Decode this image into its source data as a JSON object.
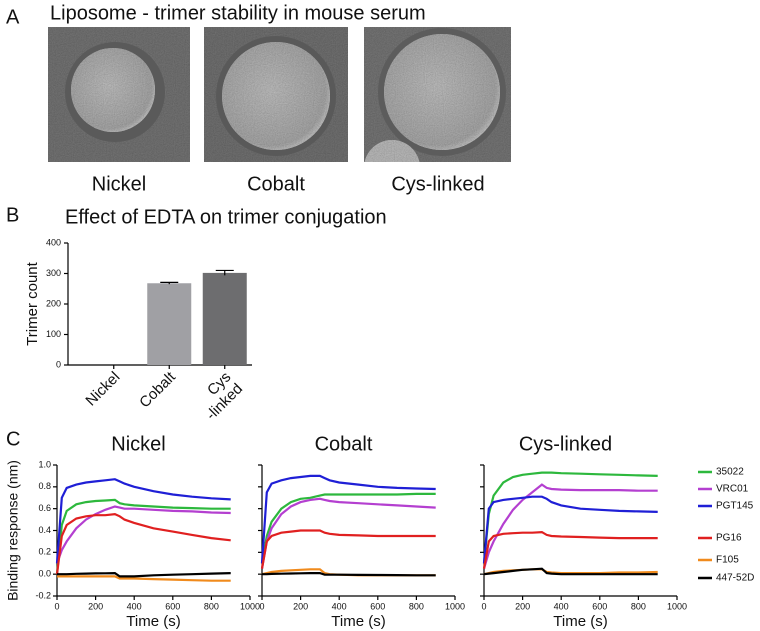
{
  "panel_a": {
    "label": "A",
    "title": "Liposome - trimer stability in mouse serum",
    "images": [
      {
        "label": "Nickel"
      },
      {
        "label": "Cobalt"
      },
      {
        "label": "Cys-linked"
      }
    ]
  },
  "panel_b_label": "B",
  "panel_c_label": "C",
  "chart_data": [
    {
      "type": "bar",
      "title": "Effect of EDTA on trimer conjugation",
      "y_label": "Trimer count",
      "categories": [
        "Nickel",
        "Cobalt",
        "Cys\n-linked"
      ],
      "values": [
        0,
        268,
        302
      ],
      "errors": [
        null,
        3,
        8
      ],
      "colors": [
        "#a0a0a4",
        "#a0a0a4",
        "#6d6d6f"
      ],
      "ylim": [
        0,
        400
      ],
      "yticks": [
        0,
        100,
        200,
        300,
        400
      ]
    },
    {
      "type": "line",
      "title": "Nickel",
      "x_label": "Time (s)",
      "y_label": "Binding response  (nm)",
      "x": [
        0,
        25,
        50,
        100,
        150,
        200,
        250,
        300,
        325,
        350,
        400,
        500,
        600,
        700,
        800,
        900
      ],
      "xlim": [
        0,
        1000
      ],
      "xticks": [
        0,
        200,
        400,
        600,
        800,
        1000
      ],
      "ylim": [
        -0.2,
        1.0
      ],
      "yticks": [
        -0.2,
        {
          "value": 0,
          "label": "0.0"
        },
        0.2,
        0.4,
        0.6,
        0.8,
        {
          "value": 1,
          "label": "1.0"
        }
      ],
      "show_ytick_labels": true,
      "series": [
        {
          "color": "#2db83d",
          "values": [
            0,
            0.45,
            0.58,
            0.64,
            0.66,
            0.67,
            0.675,
            0.68,
            0.65,
            0.64,
            0.63,
            0.62,
            0.61,
            0.605,
            0.6,
            0.6
          ]
        },
        {
          "color": "#b43fd0",
          "values": [
            0.1,
            0.22,
            0.3,
            0.42,
            0.5,
            0.55,
            0.59,
            0.62,
            0.61,
            0.6,
            0.6,
            0.59,
            0.58,
            0.575,
            0.565,
            0.56
          ]
        },
        {
          "color": "#1f1fd6",
          "values": [
            0.1,
            0.7,
            0.79,
            0.82,
            0.84,
            0.85,
            0.86,
            0.87,
            0.85,
            0.83,
            0.8,
            0.76,
            0.73,
            0.71,
            0.695,
            0.685
          ]
        },
        {
          "color": "#e02020",
          "values": [
            0,
            0.35,
            0.45,
            0.51,
            0.53,
            0.54,
            0.54,
            0.55,
            0.53,
            0.5,
            0.47,
            0.42,
            0.39,
            0.36,
            0.33,
            0.31
          ]
        },
        {
          "color": "#f08a1c",
          "values": [
            -0.02,
            -0.02,
            -0.02,
            -0.02,
            -0.02,
            -0.02,
            -0.02,
            -0.02,
            -0.04,
            -0.04,
            -0.04,
            -0.045,
            -0.05,
            -0.055,
            -0.06,
            -0.06
          ]
        },
        {
          "color": "#000000",
          "values": [
            0,
            0,
            0,
            0.003,
            0.005,
            0.007,
            0.008,
            0.01,
            -0.02,
            -0.02,
            -0.02,
            -0.01,
            -0.005,
            0,
            0.005,
            0.01
          ]
        }
      ]
    },
    {
      "type": "line",
      "title": "Cobalt",
      "x_label": "Time (s)",
      "x": [
        0,
        25,
        50,
        100,
        150,
        200,
        250,
        300,
        325,
        350,
        400,
        500,
        600,
        700,
        800,
        900
      ],
      "xlim": [
        0,
        1000
      ],
      "xticks": [
        0,
        200,
        400,
        600,
        800,
        1000
      ],
      "ylim": [
        -0.2,
        1.0
      ],
      "yticks": [
        -0.2,
        0,
        0.2,
        0.4,
        0.6,
        0.8,
        1
      ],
      "show_ytick_labels": false,
      "series": [
        {
          "color": "#2db83d",
          "values": [
            0.1,
            0.35,
            0.48,
            0.6,
            0.66,
            0.69,
            0.7,
            0.72,
            0.73,
            0.73,
            0.73,
            0.73,
            0.73,
            0.73,
            0.735,
            0.735
          ]
        },
        {
          "color": "#b43fd0",
          "values": [
            0.05,
            0.3,
            0.42,
            0.55,
            0.62,
            0.66,
            0.68,
            0.69,
            0.68,
            0.67,
            0.66,
            0.65,
            0.64,
            0.63,
            0.62,
            0.61
          ]
        },
        {
          "color": "#1f1fd6",
          "values": [
            0.1,
            0.75,
            0.83,
            0.86,
            0.88,
            0.89,
            0.9,
            0.9,
            0.88,
            0.86,
            0.84,
            0.82,
            0.8,
            0.79,
            0.785,
            0.78
          ]
        },
        {
          "color": "#e02020",
          "values": [
            0.05,
            0.3,
            0.35,
            0.38,
            0.39,
            0.4,
            0.4,
            0.4,
            0.38,
            0.37,
            0.36,
            0.355,
            0.35,
            0.35,
            0.35,
            0.35
          ]
        },
        {
          "color": "#f08a1c",
          "values": [
            0,
            0.01,
            0.02,
            0.03,
            0.035,
            0.04,
            0.045,
            0.045,
            0.01,
            0,
            -0.005,
            -0.01,
            -0.01,
            -0.01,
            -0.01,
            -0.01
          ]
        },
        {
          "color": "#000000",
          "values": [
            0,
            0,
            0.002,
            0.004,
            0.006,
            0.008,
            0.01,
            0.01,
            -0.005,
            -0.005,
            -0.005,
            -0.007,
            -0.008,
            -0.009,
            -0.01,
            -0.01
          ]
        }
      ]
    },
    {
      "type": "line",
      "title": "Cys-linked",
      "x_label": "Time (s)",
      "x": [
        0,
        25,
        50,
        100,
        150,
        200,
        250,
        300,
        325,
        350,
        400,
        500,
        600,
        700,
        800,
        900
      ],
      "xlim": [
        0,
        1000
      ],
      "xticks": [
        0,
        200,
        400,
        600,
        800,
        1000
      ],
      "ylim": [
        -0.2,
        1.0
      ],
      "yticks": [
        -0.2,
        0,
        0.2,
        0.4,
        0.6,
        0.8,
        1
      ],
      "show_ytick_labels": false,
      "legend": "outside-right",
      "series": [
        {
          "name": "35022",
          "color": "#2db83d",
          "values": [
            0.1,
            0.55,
            0.72,
            0.84,
            0.89,
            0.91,
            0.92,
            0.93,
            0.93,
            0.93,
            0.925,
            0.92,
            0.915,
            0.91,
            0.905,
            0.9
          ]
        },
        {
          "name": "VRC01",
          "color": "#b43fd0",
          "values": [
            0.05,
            0.2,
            0.3,
            0.46,
            0.59,
            0.68,
            0.75,
            0.82,
            0.79,
            0.78,
            0.775,
            0.77,
            0.77,
            0.77,
            0.765,
            0.765
          ]
        },
        {
          "name": "PGT145",
          "color": "#1f1fd6",
          "values": [
            0.1,
            0.6,
            0.66,
            0.68,
            0.69,
            0.7,
            0.71,
            0.71,
            0.69,
            0.66,
            0.63,
            0.6,
            0.59,
            0.58,
            0.575,
            0.57
          ]
        },
        {
          "name": "PG16",
          "color": "#e02020",
          "values": [
            0.05,
            0.3,
            0.35,
            0.37,
            0.375,
            0.38,
            0.38,
            0.385,
            0.36,
            0.35,
            0.345,
            0.34,
            0.335,
            0.33,
            0.33,
            0.33
          ]
        },
        {
          "name": "F105",
          "color": "#f08a1c",
          "values": [
            0,
            0.01,
            0.02,
            0.03,
            0.035,
            0.04,
            0.045,
            0.045,
            0.02,
            0.015,
            0.01,
            0.01,
            0.01,
            0.015,
            0.015,
            0.02
          ]
        },
        {
          "name": "447-52D",
          "color": "#000000",
          "values": [
            0,
            0.005,
            0.01,
            0.02,
            0.03,
            0.04,
            0.045,
            0.05,
            0.01,
            0.005,
            0,
            0,
            0,
            0,
            0,
            0
          ]
        }
      ]
    }
  ]
}
